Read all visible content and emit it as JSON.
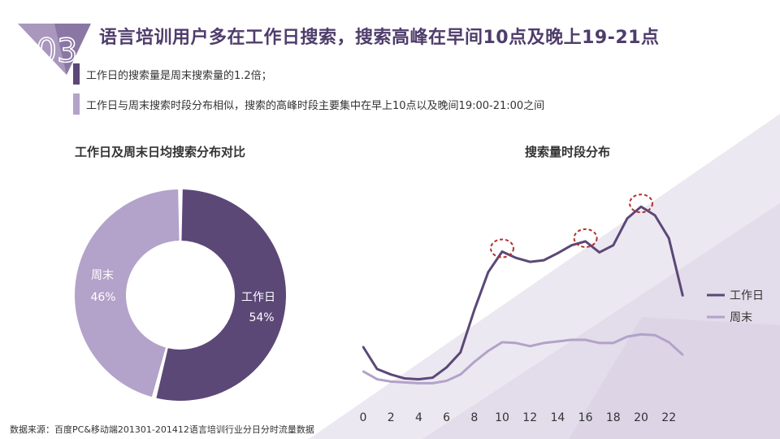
{
  "header": {
    "badge_number": "03",
    "title": "语言培训用户多在工作日搜索，搜索高峰在早间10点及晚上19-21点"
  },
  "bullets": [
    {
      "text": "工作日的搜索量是周末搜索量的1.2倍；",
      "color": "#5b4877"
    },
    {
      "text": "工作日与周末搜索时段分布相似，搜索的高峰时段主要集中在早上10点以及晚间19:00-21:00之间",
      "color": "#b3a2c9"
    }
  ],
  "colors": {
    "primary": "#5b4877",
    "secondary": "#b3a2c9",
    "accent_circle": "#b03030"
  },
  "source": "数据来源：百度PC&移动端201301-201412语言培训行业分日分时流量数据",
  "chart_data": [
    {
      "type": "pie",
      "title": "工作日及周末日均搜索分布对比",
      "slices": [
        {
          "label": "工作日",
          "value": 54,
          "display": "54%",
          "color": "#5b4877"
        },
        {
          "label": "周末",
          "value": 46,
          "display": "46%",
          "color": "#b3a2c9"
        }
      ]
    },
    {
      "type": "line",
      "title": "搜索量时段分布",
      "x": [
        0,
        1,
        2,
        3,
        4,
        5,
        6,
        7,
        8,
        9,
        10,
        11,
        12,
        13,
        14,
        15,
        16,
        17,
        18,
        19,
        20,
        21,
        22,
        23
      ],
      "xticks": [
        "0",
        "2",
        "4",
        "6",
        "8",
        "10",
        "12",
        "14",
        "16",
        "18",
        "20",
        "22"
      ],
      "series": [
        {
          "name": "工作日",
          "color": "#5b4877",
          "values": [
            57,
            29,
            22,
            17,
            16,
            18,
            31,
            50,
            104,
            152,
            178,
            170,
            165,
            167,
            176,
            186,
            191,
            177,
            186,
            220,
            235,
            224,
            195,
            122
          ]
        },
        {
          "name": "周末",
          "color": "#b3a2c9",
          "values": [
            26,
            16,
            13,
            12,
            11,
            11,
            14,
            22,
            38,
            52,
            63,
            62,
            58,
            62,
            64,
            66,
            66,
            62,
            62,
            70,
            73,
            72,
            63,
            47
          ]
        }
      ],
      "ylim": [
        0,
        260
      ],
      "highlight_x": [
        10,
        16,
        20
      ],
      "legend_position": "right"
    }
  ]
}
